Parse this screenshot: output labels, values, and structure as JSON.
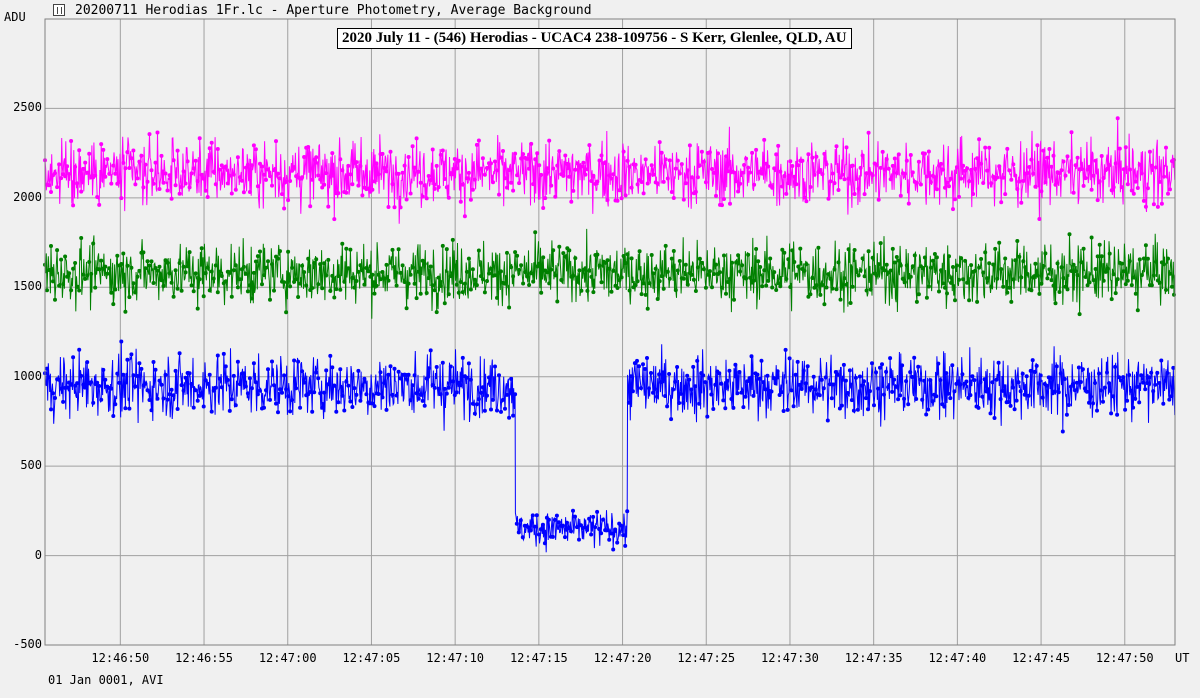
{
  "window": {
    "title": "20200711 Herodias 1Fr.lc - Aperture Photometry, Average Background",
    "icon": "lightcurve-app-icon"
  },
  "footer": {
    "date_label": "01 Jan 0001, AVI"
  },
  "chart_data": {
    "type": "line",
    "title": "2020 July 11 - (546) Herodias - UCAC4 238-109756 - S Kerr, Glenlee, QLD, AU",
    "ylabel": "ADU",
    "xlabel": "UT",
    "ylim": [
      -500,
      3000
    ],
    "xlim_seconds": [
      45.5,
      113.0
    ],
    "y_ticks": [
      "-500",
      "0",
      "500",
      "1000",
      "1500",
      "2000",
      "2500"
    ],
    "x_ticks": [
      "12:46:50",
      "12:46:55",
      "12:47:00",
      "12:47:05",
      "12:47:10",
      "12:47:15",
      "12:47:20",
      "12:47:25",
      "12:47:30",
      "12:47:35",
      "12:47:40",
      "12:47:45",
      "12:47:50"
    ],
    "x_tick_seconds": [
      50,
      55,
      60,
      65,
      70,
      75,
      80,
      85,
      90,
      95,
      100,
      105,
      110
    ],
    "grid": true,
    "series": [
      {
        "name": "",
        "color": "#ff00ff",
        "noise_sd": 125,
        "segments": [
          {
            "start": "12:46:45.5",
            "end": "12:47:53.0",
            "mean": 2140
          }
        ]
      },
      {
        "name": "",
        "color": "#008000",
        "noise_sd": 115,
        "segments": [
          {
            "start": "12:46:45.5",
            "end": "12:47:53.0",
            "mean": 1580
          }
        ]
      },
      {
        "name": "",
        "color": "#0000ff",
        "noise_sd": 120,
        "segments": [
          {
            "start": "12:46:45.5",
            "end": "12:47:13.6",
            "mean": 950
          },
          {
            "start": "12:47:13.6",
            "end": "12:47:20.3",
            "mean": 150,
            "noise_sd": 70
          },
          {
            "start": "12:47:20.3",
            "end": "12:47:53.0",
            "mean": 950
          }
        ]
      }
    ]
  }
}
